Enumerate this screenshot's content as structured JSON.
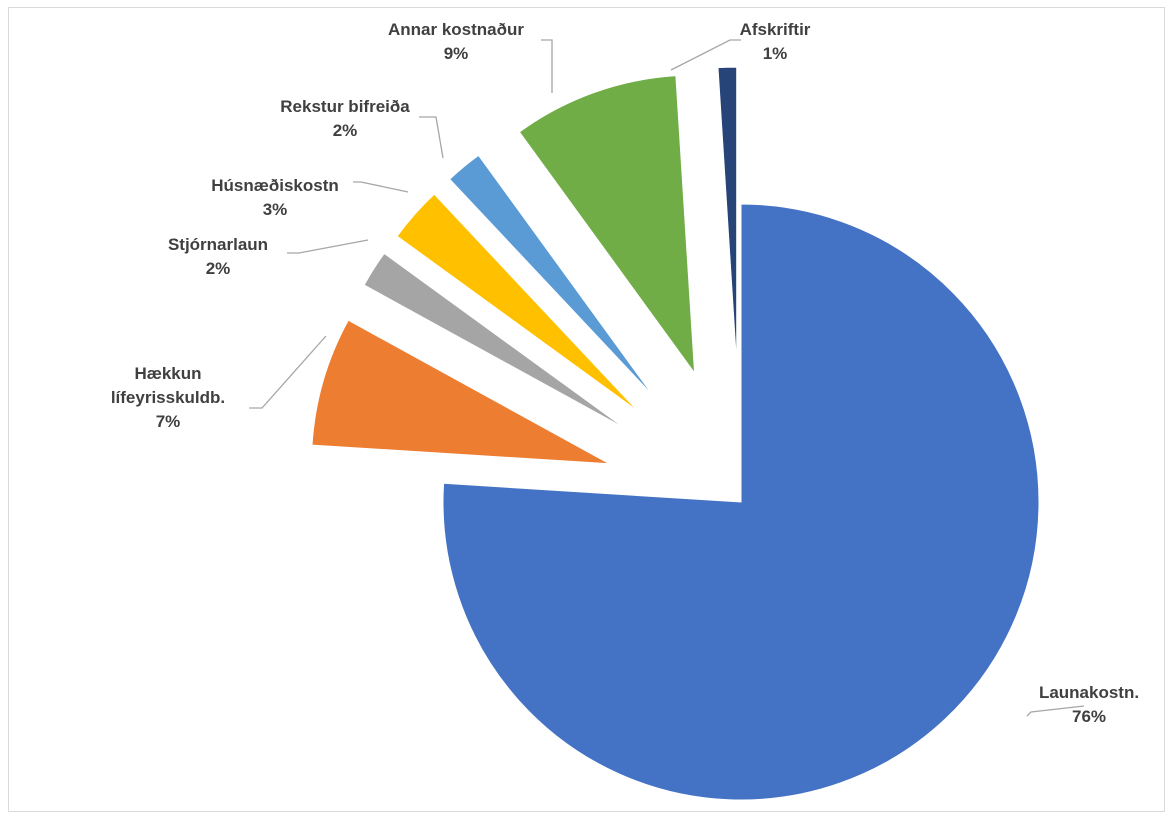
{
  "chart_data": {
    "type": "pie",
    "title": "",
    "slices": [
      {
        "name": "Launakostn.",
        "value": 76,
        "label": "76%",
        "color": "#4472C4"
      },
      {
        "name": "Hækkun lífeyrisskuldb.",
        "value": 7,
        "label": "7%",
        "color": "#ED7D31"
      },
      {
        "name": "Stjórnarlaun",
        "value": 2,
        "label": "2%",
        "color": "#A5A5A5"
      },
      {
        "name": "Húsnæðiskostn",
        "value": 3,
        "label": "3%",
        "color": "#FFC000"
      },
      {
        "name": "Rekstur bifreiða",
        "value": 2,
        "label": "2%",
        "color": "#5B9BD5"
      },
      {
        "name": "Annar kostnaður",
        "value": 9,
        "label": "9%",
        "color": "#70AD47"
      },
      {
        "name": "Afskriftir",
        "value": 1,
        "label": "1%",
        "color": "#264478"
      }
    ],
    "exploded": true,
    "legend": "none"
  }
}
